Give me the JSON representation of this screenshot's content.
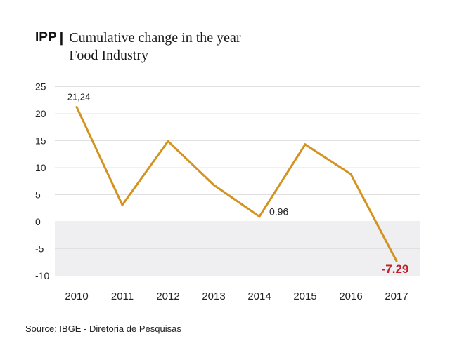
{
  "header": {
    "brand": "IPP",
    "separator": "|",
    "title": "Cumulative change in the year",
    "subtitle": "Food Industry"
  },
  "source": "Source:  IBGE - Diretoria de Pesquisas",
  "colors": {
    "line": "#d4921f",
    "negative_band": "#efeef1",
    "grid": "#e0e0e0",
    "negative_label": "#c0202c"
  },
  "chart_data": {
    "type": "line",
    "title": "Cumulative change in the year",
    "subtitle": "Food Industry",
    "categories": [
      "2010",
      "2011",
      "2012",
      "2013",
      "2014",
      "2015",
      "2016",
      "2017"
    ],
    "values": [
      21.24,
      3.1,
      14.9,
      6.8,
      0.96,
      14.3,
      8.8,
      -7.29
    ],
    "ylim": [
      -10,
      25
    ],
    "yticks": [
      "25",
      "20",
      "15",
      "10",
      "5",
      "0",
      "-5",
      "-10"
    ],
    "ytick_values": [
      25,
      20,
      15,
      10,
      5,
      0,
      -5,
      -10
    ],
    "annotations": [
      {
        "category": "2010",
        "text": "21,24"
      },
      {
        "category": "2014",
        "text": "0.96"
      },
      {
        "category": "2017",
        "text": "-7.29"
      }
    ],
    "grid": true,
    "legend": "none"
  }
}
